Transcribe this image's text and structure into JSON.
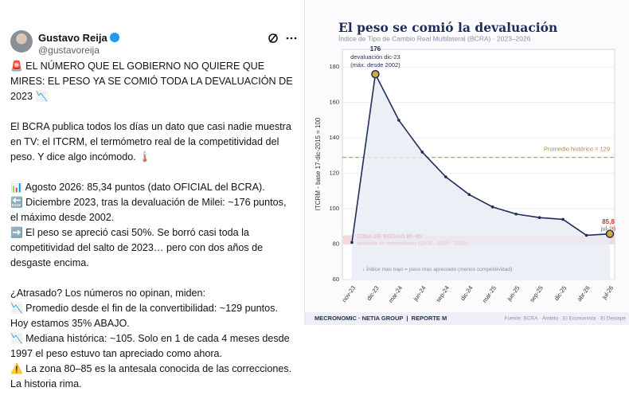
{
  "tweet": {
    "author": "Gustavo Reija",
    "handle": "@gustavoreija",
    "paragraphs": [
      [
        "🚨 EL NÚMERO QUE EL GOBIERNO NO QUIERE QUE MIRES: EL PESO YA SE COMIÓ TODA LA DEVALUACIÓN DE 2023 📉"
      ],
      [
        "El BCRA publica todos los días un dato que casi nadie muestra en TV: el ITCRM, el termómetro real de la competitividad del peso. Y dice algo incómodo. 🌡️"
      ],
      [
        "📊 Agosto 2026: 85,34 puntos (dato OFICIAL del BCRA).",
        "🔙 Diciembre 2023, tras la devaluación de Milei: ~176 puntos, el máximo desde 2002.",
        "➡️ El peso se apreció casi 50%. Se borró casi toda la competitividad del salto de 2023… pero con dos años de desgaste encima."
      ],
      [
        "¿Atrasado? Los números no opinan, miden:",
        "📉 Promedio desde el fin de la convertibilidad: ~129 puntos. Hoy estamos 35% ABAJO.",
        "📉 Mediana histórica: ~105. Solo en 1 de cada 4 meses desde 1997 el peso estuvo tan apreciado como ahora.",
        "⚠️ La zona 80–85 es la antesala conocida de las correcciones. La historia rima."
      ]
    ]
  },
  "chart_data": {
    "type": "line",
    "title": "El peso se comió la devaluación",
    "subtitle": "Índice de Tipo de Cambio Real Multilateral (BCRA) · 2023–2026",
    "y_label": "ITCRM - base 17-dic-2015 = 100",
    "categories": [
      "nov-23",
      "dic-23",
      "mar-24",
      "jun-24",
      "sep-24",
      "dic-24",
      "mar-25",
      "jun-25",
      "sep-25",
      "dic-25",
      "abr-26",
      "jul-26"
    ],
    "values": [
      81,
      176,
      150,
      132,
      118,
      108,
      101,
      97,
      95,
      94,
      85,
      85.8
    ],
    "value_labels": [
      null,
      "176",
      null,
      null,
      null,
      null,
      null,
      null,
      null,
      null,
      null,
      "85,8"
    ],
    "color": "#1f2d5a",
    "highlight_color": "#d4a843",
    "area_color": "#e9ebf4",
    "ylim": [
      60,
      190
    ],
    "yticks": [
      60,
      80,
      100,
      120,
      140,
      160,
      180
    ],
    "grid": true,
    "annotations": {
      "peak": [
        "devaluación dic-23",
        "(máx. desde 2002)"
      ],
      "last": [
        "jul-26"
      ]
    },
    "reference_line": {
      "value": 129,
      "label": "Promedio histórico = 129",
      "color": "#c8a24a"
    },
    "zone": {
      "range": [
        80,
        85
      ],
      "labels": [
        "ZONA DE RIESGO 80–85",
        "antesala de correcciones (2001 · 2015 · 2018)"
      ],
      "color": "#f6d9dc",
      "text_color": "#c0392b"
    },
    "note": "↓ Índice más bajo = peso más apreciado (menos competitividad)",
    "footer_brand": "MECRONOMIC · NETIA GROUP  |  REPORTE M",
    "footer_source": "Fuente: BCRA · Ámbito · El Economista · El Destape"
  }
}
